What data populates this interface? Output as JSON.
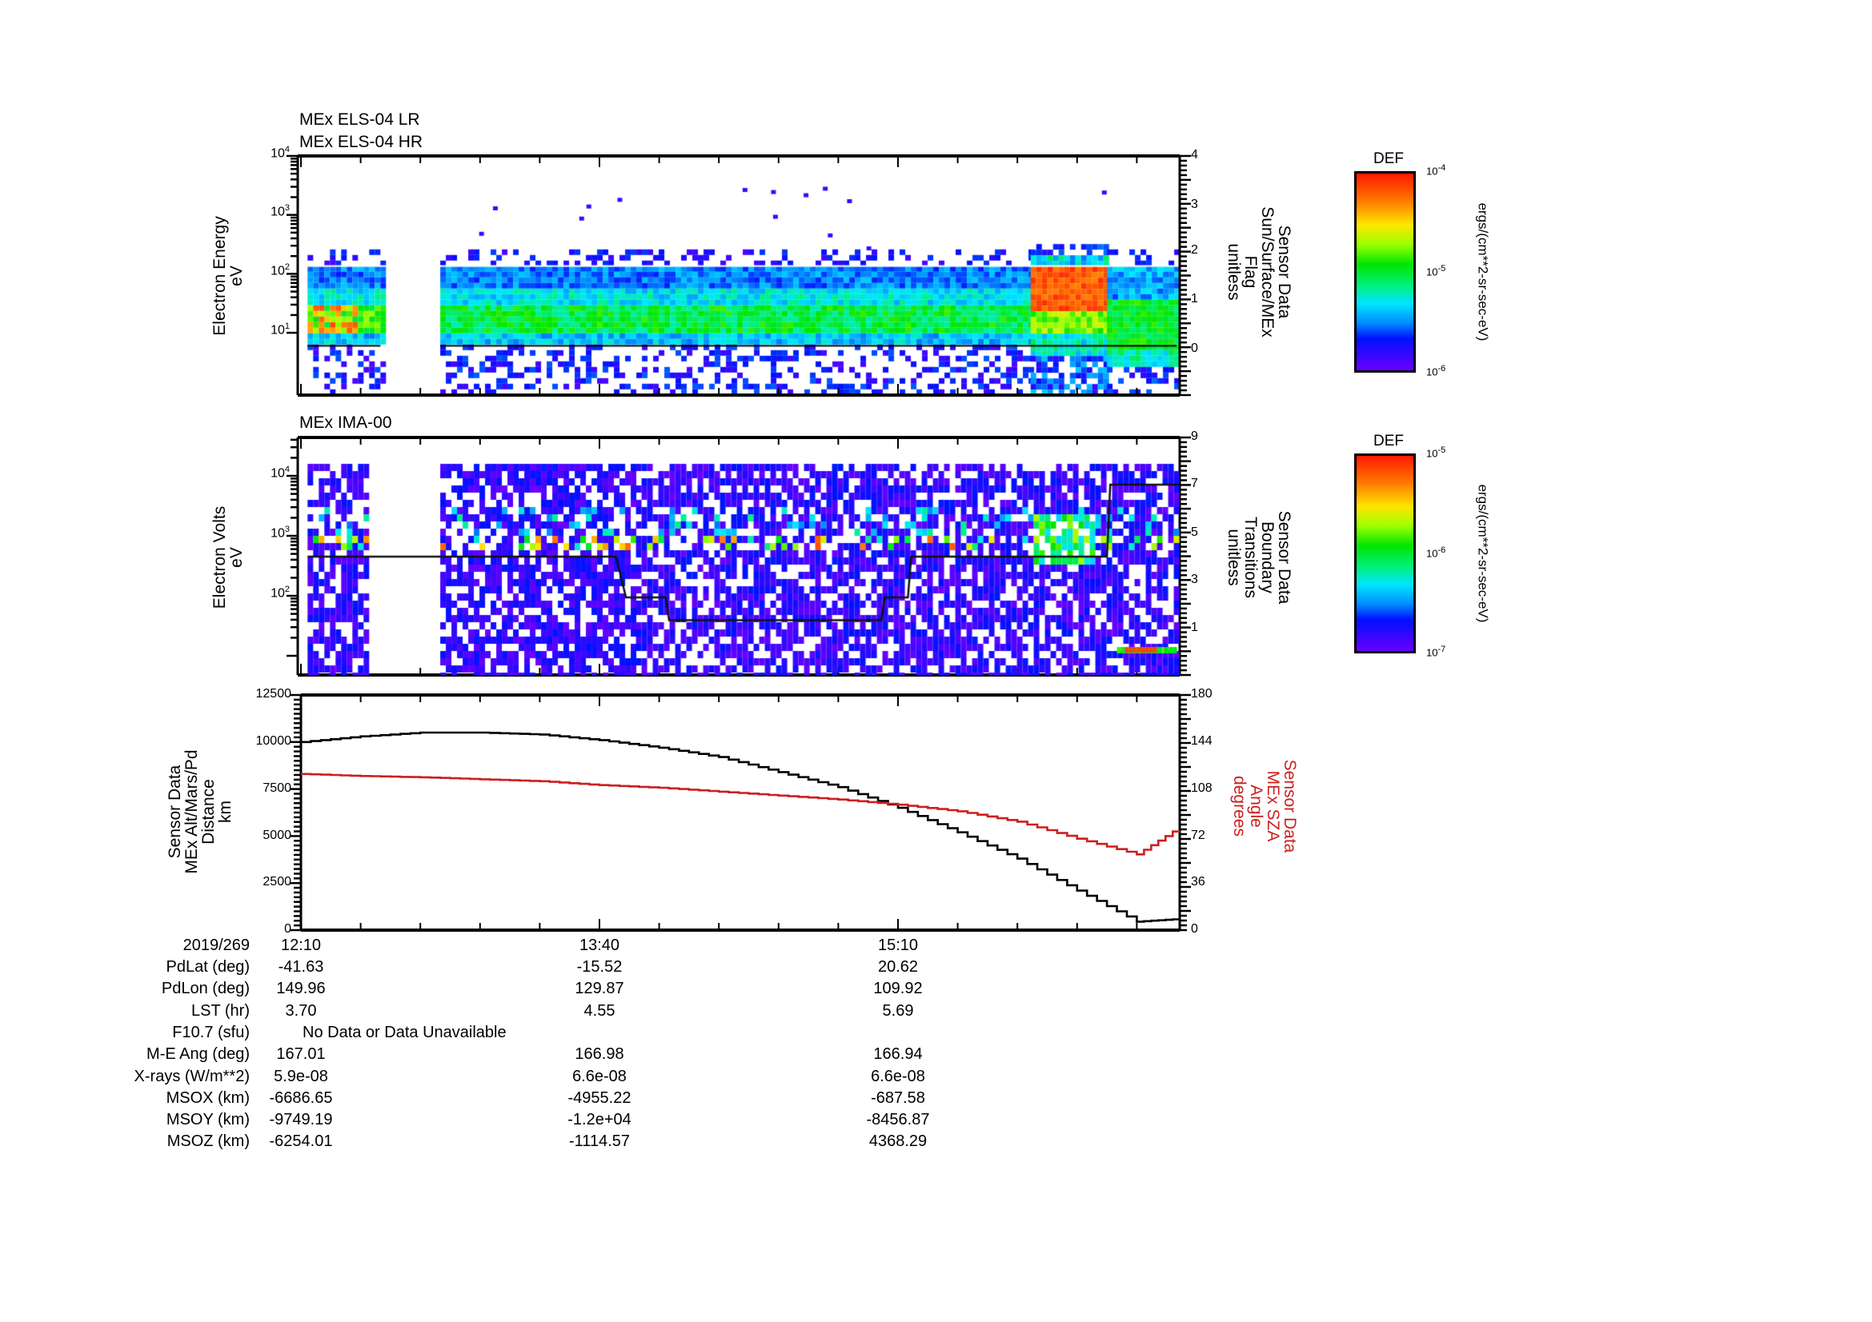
{
  "chart_data": [
    {
      "type": "heatmap",
      "title": [
        "MEx ELS-04 LR",
        "MEx ELS-04 HR"
      ],
      "ylabel": [
        "Electron Energy",
        "eV"
      ],
      "yscale": "log",
      "yticks": [
        "10^1",
        "10^2",
        "10^3",
        "10^4"
      ],
      "ylim": [
        1.3,
        10000
      ],
      "right_axis": {
        "label": [
          "Sensor Data",
          "Sun/Surface/MEx",
          "Flag",
          "unitless"
        ],
        "ticks": [
          "0",
          "1",
          "2",
          "3",
          "4"
        ],
        "range": [
          -0.95,
          4
        ]
      },
      "colorbar": {
        "title": "DEF",
        "ticks": [
          "10^-6",
          "10^-5",
          "10^-4"
        ],
        "unit": "ergs/(cm**2-sr-sec-eV)"
      },
      "overlay_line": {
        "name": "Sun/Surface/MEx Flag",
        "value": 0,
        "segments": [
          [
            "12:12",
            "12:34"
          ],
          [
            "12:52",
            "16:35"
          ]
        ]
      },
      "data_gaps": [
        [
          "12:34",
          "12:52"
        ]
      ],
      "features": [
        {
          "time": [
            "12:12",
            "12:34"
          ],
          "energy_eV": [
            8,
            140
          ],
          "peak_color": "yellow-red",
          "note": "enhanced flux 20-30 eV"
        },
        {
          "time": [
            "12:52",
            "15:50"
          ],
          "energy_eV": [
            7,
            140
          ],
          "peak_color": "green-cyan"
        },
        {
          "time": [
            "15:50",
            "16:13"
          ],
          "energy_eV": [
            15,
            220
          ],
          "peak_color": "red",
          "note": "strong flux 30-100 eV"
        },
        {
          "time": [
            "16:13",
            "16:35"
          ],
          "energy_eV": [
            4,
            30
          ],
          "peak_color": "green"
        }
      ]
    },
    {
      "type": "heatmap",
      "title": "MEx IMA-00",
      "ylabel": [
        "Electron Volts",
        "eV"
      ],
      "yscale": "log",
      "yticks": [
        "10^2",
        "10^3",
        "10^4"
      ],
      "right_axis": {
        "label": [
          "Sensor Data",
          "Boundary",
          "Transitions",
          "unitless"
        ],
        "ticks": [
          "1",
          "3",
          "5",
          "7",
          "9"
        ],
        "range": [
          -0.6,
          9
        ]
      },
      "colorbar": {
        "title": "DEF",
        "ticks": [
          "10^-7",
          "10^-6",
          "10^-5"
        ],
        "unit": "ergs/(cm**2-sr-sec-eV)"
      },
      "boundary_steps": [
        {
          "time": [
            "12:12",
            "13:45"
          ],
          "value": 4
        },
        {
          "time": [
            "13:48",
            "14:00"
          ],
          "value": 2.3
        },
        {
          "time": [
            "14:01",
            "15:05"
          ],
          "value": 1.35
        },
        {
          "time": [
            "15:05",
            "15:13"
          ],
          "value": 2.3
        },
        {
          "time": [
            "15:14",
            "16:13"
          ],
          "value": 4
        },
        {
          "time": [
            "16:14",
            "16:35"
          ],
          "value": 7
        }
      ],
      "data_gaps": [
        [
          "12:30",
          "12:51"
        ],
        [
          "13:50",
          "13:51"
        ]
      ],
      "features": [
        {
          "time": [
            "12:12",
            "16:10"
          ],
          "energy_eV": [
            700,
            1200
          ],
          "peak_color": "green-red dots",
          "note": "~1 keV band"
        },
        {
          "time": [
            "15:50",
            "16:08"
          ],
          "energy_eV": [
            400,
            2500
          ],
          "peak_color": "green-yellow"
        },
        {
          "time": [
            "16:16",
            "16:35"
          ],
          "energy_eV": [
            3,
            5
          ],
          "peak_color": "red"
        }
      ]
    },
    {
      "type": "line",
      "ylabel": [
        "Sensor Data",
        "MEx Alt/Mars/Pd",
        "Distance",
        "km"
      ],
      "ylim": [
        0,
        12500
      ],
      "yticks": [
        "0",
        "2500",
        "5000",
        "7500",
        "10000",
        "12500"
      ],
      "right_axis": {
        "label": [
          "Sensor Data",
          "MEx SZA",
          "Angle",
          "degrees"
        ],
        "ticks": [
          "0",
          "36",
          "72",
          "108",
          "144",
          "180"
        ],
        "range": [
          0,
          180
        ],
        "color": "#cc1f1f"
      },
      "x": [
        "12:10",
        "12:28",
        "12:46",
        "13:04",
        "13:22",
        "13:40",
        "13:58",
        "14:16",
        "14:34",
        "14:52",
        "15:10",
        "15:28",
        "15:46",
        "16:04",
        "16:22",
        "16:35"
      ],
      "series": [
        {
          "name": "MEx Alt/Mars/Pd Distance (km)",
          "color": "#000000",
          "axis": "left",
          "values": [
            10000,
            10300,
            10500,
            10500,
            10400,
            10100,
            9700,
            9200,
            8400,
            7600,
            6500,
            5200,
            3800,
            2100,
            450,
            600
          ]
        },
        {
          "name": "MEx SZA Angle (degrees)",
          "color": "#cc1f1f",
          "axis": "right",
          "values": [
            119.5,
            118,
            117,
            115.5,
            114,
            111,
            109,
            106,
            103,
            100,
            96,
            91,
            83,
            70,
            58,
            79
          ]
        }
      ]
    }
  ],
  "panels": {
    "p1": {
      "title1": "MEx ELS-04 LR",
      "title2": "MEx ELS-04 HR",
      "ylabel": [
        "Electron Energy",
        "eV"
      ],
      "ylabels": [
        {
          "base": "10",
          "exp": "4",
          "y": 195
        },
        {
          "base": "10",
          "exp": "3",
          "y": 268
        },
        {
          "base": "10",
          "exp": "2",
          "y": 342
        },
        {
          "base": "10",
          "exp": "1",
          "y": 416
        }
      ],
      "rlabels": [
        {
          "t": "4",
          "y": 195
        },
        {
          "t": "3",
          "y": 257
        },
        {
          "t": "2",
          "y": 314
        },
        {
          "t": "1",
          "y": 375
        },
        {
          "t": "0",
          "y": 437
        }
      ],
      "rtitle": [
        "Sensor Data",
        "Sun/Surface/MEx",
        "Flag",
        "unitless"
      ],
      "cb_title": "DEF",
      "cb_ticks": [
        {
          "base": "10",
          "exp": "-4",
          "y": 214
        },
        {
          "base": "10",
          "exp": "-5",
          "y": 340
        },
        {
          "base": "10",
          "exp": "-6",
          "y": 465
        }
      ],
      "cb_unit": "ergs/(cm**2-sr-sec-eV)"
    },
    "p2": {
      "title": "MEx IMA-00",
      "ylabel": [
        "Electron Volts",
        "eV"
      ],
      "ylabels": [
        {
          "base": "10",
          "exp": "4",
          "y": 595
        },
        {
          "base": "10",
          "exp": "3",
          "y": 670
        },
        {
          "base": "10",
          "exp": "2",
          "y": 745
        }
      ],
      "rlabels": [
        {
          "t": "9",
          "y": 547
        },
        {
          "t": "7",
          "y": 606
        },
        {
          "t": "5",
          "y": 667
        },
        {
          "t": "3",
          "y": 726
        },
        {
          "t": "1",
          "y": 786
        }
      ],
      "rtitle": [
        "Sensor Data",
        "Boundary",
        "Transitions",
        "unitless"
      ],
      "cb_title": "DEF",
      "cb_ticks": [
        {
          "base": "10",
          "exp": "-5",
          "y": 567
        },
        {
          "base": "10",
          "exp": "-6",
          "y": 692
        },
        {
          "base": "10",
          "exp": "-7",
          "y": 816
        }
      ],
      "cb_unit": "ergs/(cm**2-sr-sec-eV)"
    },
    "p3": {
      "ylabel": [
        "Sensor Data",
        "MEx Alt/Mars/Pd",
        "Distance",
        "km"
      ],
      "ylabels": [
        {
          "t": "12500",
          "y": 869
        },
        {
          "t": "10000",
          "y": 928
        },
        {
          "t": "7500",
          "y": 987
        },
        {
          "t": "5000",
          "y": 1046
        },
        {
          "t": "2500",
          "y": 1104
        },
        {
          "t": "0",
          "y": 1163
        }
      ],
      "rlabels": [
        {
          "t": "180",
          "y": 869
        },
        {
          "t": "144",
          "y": 928
        },
        {
          "t": "108",
          "y": 987
        },
        {
          "t": "72",
          "y": 1046
        },
        {
          "t": "36",
          "y": 1104
        },
        {
          "t": "0",
          "y": 1163
        }
      ],
      "rtitle": [
        "Sensor Data",
        "MEx SZA",
        "Angle",
        "degrees"
      ],
      "rtitle_color": "#cc1f1f"
    }
  },
  "time_axis": {
    "date": "2019/269",
    "labels": [
      {
        "t": "12:10",
        "x": 376
      },
      {
        "t": "13:40",
        "x": 749
      },
      {
        "t": "15:10",
        "x": 1122
      }
    ]
  },
  "ephemeris": {
    "rows": [
      {
        "label": "PdLat (deg)",
        "values": [
          "-41.63",
          "-15.52",
          "20.62"
        ]
      },
      {
        "label": "PdLon (deg)",
        "values": [
          "149.96",
          "129.87",
          "109.92"
        ]
      },
      {
        "label": "LST (hr)",
        "values": [
          "3.70",
          "4.55",
          "5.69"
        ]
      },
      {
        "label": "F10.7 (sfu)",
        "values": [
          "No Data or Data Unavailable"
        ]
      },
      {
        "label": "M-E Ang (deg)",
        "values": [
          "167.01",
          "166.98",
          "166.94"
        ]
      },
      {
        "label": "X-rays (W/m**2)",
        "values": [
          "5.9e-08",
          "6.6e-08",
          "6.6e-08"
        ]
      },
      {
        "label": "MSOX (km)",
        "values": [
          "-6686.65",
          "-4955.22",
          "-687.58"
        ]
      },
      {
        "label": "MSOY (km)",
        "values": [
          "-9749.19",
          "-1.2e+04",
          "-8456.87"
        ]
      },
      {
        "label": "MSOZ (km)",
        "values": [
          "-6254.01",
          "-1114.57",
          "4368.29"
        ]
      }
    ]
  },
  "colors": {
    "alt_line": "#000000",
    "sza_line": "#cc1f1f"
  }
}
